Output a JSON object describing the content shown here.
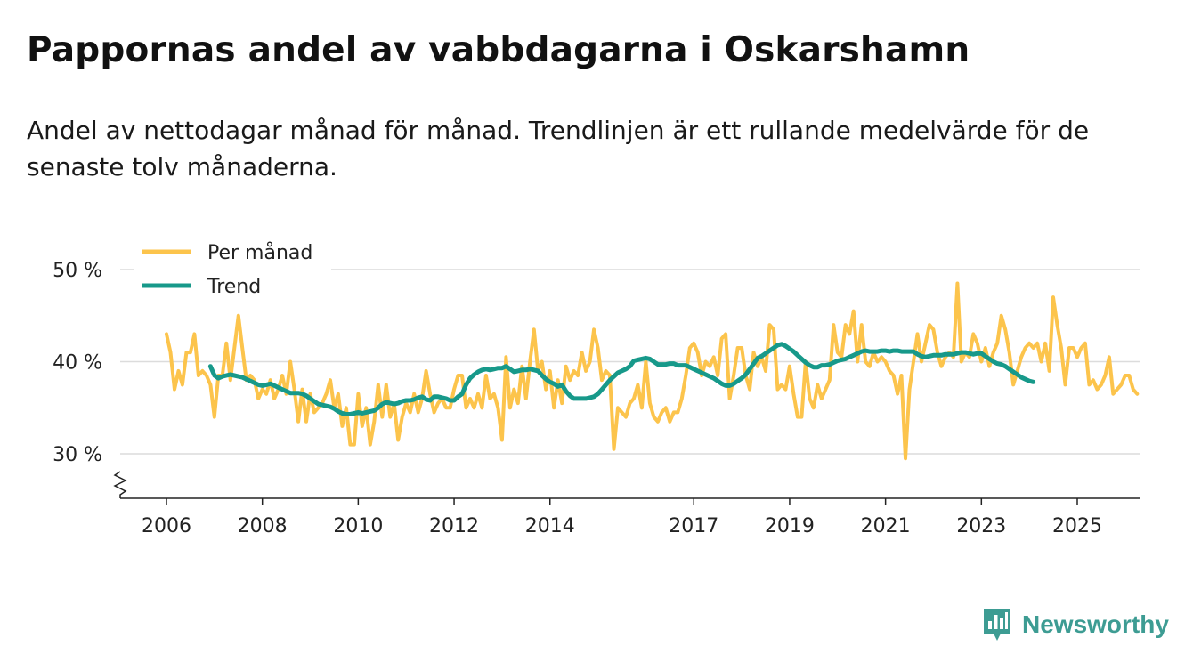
{
  "title": "Pappornas andel av vabbdagarna i Oskarshamn",
  "subtitle": "Andel av nettodagar månad för månad. Trendlinjen är ett rullande medelvärde för de senaste tolv månaderna.",
  "brand": {
    "name": "Newsworthy",
    "icon": "newsworthy-logo-icon",
    "color": "#3d9c93"
  },
  "chart_data": {
    "type": "line",
    "title": "Pappornas andel av vabbdagarna i Oskarshamn",
    "xlabel": "",
    "ylabel": "",
    "xlim": [
      2005.5,
      2026.3
    ],
    "ylim": [
      25,
      50
    ],
    "y_ticks": [
      30,
      40,
      50
    ],
    "y_tick_labels": [
      "30 %",
      "40 %",
      "50 %"
    ],
    "x_ticks": [
      2006,
      2008,
      2010,
      2012,
      2014,
      2017,
      2019,
      2021,
      2023,
      2025
    ],
    "x_tick_labels": [
      "2006",
      "2008",
      "2010",
      "2012",
      "2014",
      "2017",
      "2019",
      "2021",
      "2023",
      "2025"
    ],
    "grid": "horizontal",
    "axis_break": true,
    "legend": {
      "position": "top-left"
    },
    "series": [
      {
        "name": "Per månad",
        "color": "#fcc44c",
        "start": 2006.0,
        "step": 0.08333,
        "values": [
          43,
          41,
          37,
          39,
          37.5,
          41,
          41,
          43,
          38.5,
          39,
          38.5,
          37.5,
          34,
          38.5,
          38.5,
          42,
          38,
          41.5,
          45,
          41.5,
          38,
          38.5,
          38,
          36,
          37,
          36.5,
          38,
          36,
          37,
          38.5,
          36.5,
          40,
          37,
          33.5,
          37,
          33.5,
          36.5,
          34.5,
          35,
          35.5,
          36.5,
          38,
          35,
          36.5,
          33,
          35,
          31,
          31,
          36.5,
          33,
          35,
          31,
          33.5,
          37.5,
          34,
          37.5,
          34,
          35.5,
          31.5,
          34,
          35.5,
          34.5,
          36.5,
          34.5,
          36,
          39,
          36.5,
          34.5,
          35.5,
          36,
          35,
          35,
          37,
          38.5,
          38.5,
          35,
          36,
          35,
          36.5,
          35,
          38.5,
          36,
          36.5,
          35,
          31.5,
          40.5,
          35,
          37,
          35.5,
          39.5,
          36,
          40,
          43.5,
          39,
          40,
          37,
          39,
          35,
          38,
          35.5,
          39.5,
          38,
          39,
          38.5,
          41,
          39,
          40,
          43.5,
          41.5,
          38,
          39,
          38.5,
          30.5,
          35,
          34.5,
          34,
          35.5,
          36,
          37.5,
          35,
          40,
          35.5,
          34,
          33.5,
          34.5,
          35,
          33.5,
          34.5,
          34.5,
          36,
          38.5,
          41.5,
          42,
          41,
          38.5,
          40,
          39.5,
          40.5,
          38.5,
          42.5,
          43,
          36,
          38.5,
          41.5,
          41.5,
          38.5,
          37,
          41,
          39.5,
          40.5,
          39,
          44,
          43.5,
          37,
          37.5,
          37,
          39.5,
          36.5,
          34,
          34,
          40,
          36,
          35,
          37.5,
          36,
          37,
          38,
          44,
          41,
          40.5,
          44,
          43,
          45.5,
          40,
          44,
          40,
          39.5,
          41,
          40,
          40.5,
          40,
          39,
          38.5,
          36.5,
          38.5,
          29.5,
          37,
          40,
          43,
          40,
          42,
          44,
          43.5,
          41,
          39.5,
          40.5,
          41,
          40.5,
          48.5,
          40,
          41,
          40.5,
          43,
          42,
          40,
          41.5,
          39.5,
          41,
          42,
          45,
          43.5,
          41,
          37.5,
          39,
          40.5,
          41.5,
          42,
          41.5,
          42,
          40,
          42,
          39,
          47,
          44,
          41.5,
          37.5,
          41.5,
          41.5,
          40.5,
          41.5,
          42,
          37.5,
          38,
          37,
          37.5,
          38.5,
          40.5,
          36.5,
          37,
          37.5,
          38.5,
          38.5,
          37,
          36.5
        ]
      },
      {
        "name": "Trend",
        "color": "#17998a",
        "start": 2006.917,
        "step": 0.08333,
        "values": [
          39.5,
          38.5,
          38.2,
          38.4,
          38.5,
          38.6,
          38.5,
          38.4,
          38.3,
          38.1,
          37.9,
          37.7,
          37.5,
          37.4,
          37.5,
          37.6,
          37.4,
          37.2,
          37,
          36.8,
          36.6,
          36.6,
          36.6,
          36.5,
          36.3,
          36,
          35.7,
          35.4,
          35.3,
          35.2,
          35.1,
          34.9,
          34.6,
          34.4,
          34.3,
          34.3,
          34.4,
          34.5,
          34.4,
          34.5,
          34.6,
          34.7,
          35,
          35.4,
          35.6,
          35.5,
          35.4,
          35.5,
          35.7,
          35.8,
          35.8,
          35.9,
          36.1,
          36.2,
          35.9,
          35.8,
          36.2,
          36.2,
          36.1,
          36,
          35.8,
          35.8,
          36.2,
          36.5,
          37.5,
          38.2,
          38.6,
          38.9,
          39.1,
          39.2,
          39.1,
          39.2,
          39.3,
          39.3,
          39.5,
          39.2,
          38.9,
          39,
          39.1,
          39.1,
          39.2,
          39.1,
          39,
          38.5,
          38.1,
          37.8,
          37.6,
          37.3,
          37.5,
          36.8,
          36.3,
          36,
          36,
          36,
          36,
          36.1,
          36.2,
          36.5,
          37,
          37.5,
          38,
          38.4,
          38.8,
          39,
          39.2,
          39.5,
          40.1,
          40.2,
          40.3,
          40.4,
          40.3,
          40,
          39.7,
          39.7,
          39.7,
          39.8,
          39.8,
          39.6,
          39.6,
          39.6,
          39.4,
          39.2,
          39,
          38.8,
          38.6,
          38.4,
          38.2,
          37.9,
          37.6,
          37.4,
          37.4,
          37.6,
          37.9,
          38.2,
          38.6,
          39.2,
          39.8,
          40.4,
          40.6,
          40.9,
          41.2,
          41.5,
          41.8,
          41.9,
          41.7,
          41.4,
          41.1,
          40.7,
          40.3,
          39.9,
          39.6,
          39.4,
          39.4,
          39.6,
          39.6,
          39.7,
          39.9,
          40.1,
          40.2,
          40.3,
          40.5,
          40.7,
          40.9,
          41.1,
          41.2,
          41.1,
          41.1,
          41.1,
          41.2,
          41.2,
          41.1,
          41.2,
          41.2,
          41.1,
          41.1,
          41.1,
          41.1,
          40.8,
          40.6,
          40.5,
          40.6,
          40.7,
          40.7,
          40.7,
          40.8,
          40.8,
          40.8,
          40.9,
          41,
          41,
          40.9,
          40.8,
          40.9,
          40.9,
          40.6,
          40.3,
          40,
          39.8,
          39.7,
          39.5,
          39.2,
          38.9,
          38.6,
          38.3,
          38.1,
          37.9,
          37.8
        ]
      }
    ]
  }
}
